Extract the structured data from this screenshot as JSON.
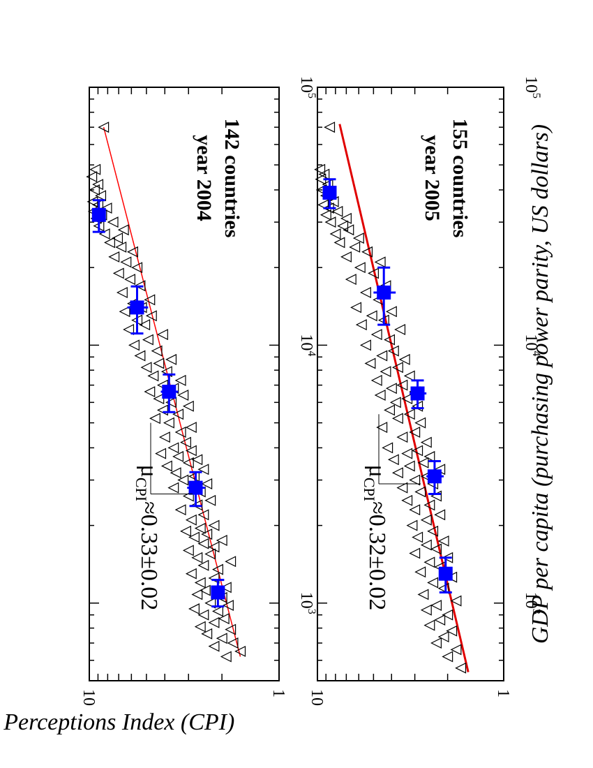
{
  "axes": {
    "x_title": "GDP per capita (purchasing power parity, US dollars)",
    "y_title": "Corruption Perceptions Index (CPI)",
    "x_scale": "log",
    "y_scale": "log",
    "x_ticks": [
      {
        "base": "10",
        "exp": "3",
        "value": 1000
      },
      {
        "base": "10",
        "exp": "4",
        "value": 10000
      },
      {
        "base": "10",
        "exp": "5",
        "value": 100000
      }
    ],
    "y_ticks": [
      {
        "label": "10",
        "value": 10
      },
      {
        "label": "1",
        "value": 1
      }
    ]
  },
  "chart_data": [
    {
      "type": "scatter",
      "annotation": {
        "year": "year 2004",
        "countries": "142 countries"
      },
      "exponent": {
        "symbol": "μ",
        "sub": "CPI",
        "text": "≈0.33±0.02"
      },
      "fit_color": "#ff0000",
      "binned_color": "#0000ff",
      "fit": {
        "x1": 620,
        "y1": 1.6,
        "x2": 70000,
        "y2": 8.4
      },
      "binned": [
        {
          "x": 1100,
          "y": 2.1,
          "xerr": 130,
          "yerr": 0.15
        },
        {
          "x": 2800,
          "y": 2.75,
          "xerr": 420,
          "yerr": 0.3
        },
        {
          "x": 6600,
          "y": 3.8,
          "xerr": 1100,
          "yerr": 0.4
        },
        {
          "x": 14000,
          "y": 5.6,
          "xerr": 2900,
          "yerr": 0.7
        },
        {
          "x": 32000,
          "y": 8.9,
          "xerr": 4500,
          "yerr": 0.6
        }
      ],
      "points": [
        [
          620,
          1.9
        ],
        [
          650,
          1.6
        ],
        [
          680,
          2.2
        ],
        [
          700,
          1.75
        ],
        [
          730,
          2.0
        ],
        [
          760,
          2.4
        ],
        [
          790,
          1.8
        ],
        [
          810,
          2.6
        ],
        [
          840,
          2.2
        ],
        [
          870,
          1.95
        ],
        [
          900,
          2.5
        ],
        [
          930,
          2.1
        ],
        [
          950,
          2.8
        ],
        [
          980,
          1.85
        ],
        [
          1000,
          2.3
        ],
        [
          1050,
          2.0
        ],
        [
          1080,
          2.7
        ],
        [
          1120,
          2.45
        ],
        [
          1150,
          1.9
        ],
        [
          1200,
          2.6
        ],
        [
          1250,
          2.2
        ],
        [
          1300,
          2.9
        ],
        [
          1350,
          2.1
        ],
        [
          1400,
          2.5
        ],
        [
          1450,
          1.8
        ],
        [
          1500,
          2.7
        ],
        [
          1550,
          2.3
        ],
        [
          1600,
          3.0
        ],
        [
          1650,
          2.2
        ],
        [
          1700,
          2.5
        ],
        [
          1750,
          2.0
        ],
        [
          1800,
          2.8
        ],
        [
          1850,
          2.4
        ],
        [
          1900,
          3.1
        ],
        [
          1950,
          2.6
        ],
        [
          2000,
          2.2
        ],
        [
          2100,
          2.9
        ],
        [
          2200,
          2.5
        ],
        [
          2300,
          3.3
        ],
        [
          2400,
          2.7
        ],
        [
          2500,
          2.3
        ],
        [
          2600,
          3.0
        ],
        [
          2700,
          2.6
        ],
        [
          2800,
          3.6
        ],
        [
          2900,
          2.4
        ],
        [
          3000,
          3.2
        ],
        [
          3100,
          2.8
        ],
        [
          3200,
          3.5
        ],
        [
          3300,
          2.5
        ],
        [
          3400,
          3.9
        ],
        [
          3500,
          3.0
        ],
        [
          3600,
          2.7
        ],
        [
          3700,
          3.4
        ],
        [
          3800,
          4.2
        ],
        [
          3900,
          2.9
        ],
        [
          4000,
          3.6
        ],
        [
          4200,
          3.1
        ],
        [
          4400,
          4.0
        ],
        [
          4600,
          3.3
        ],
        [
          4800,
          2.9
        ],
        [
          5000,
          3.8
        ],
        [
          5200,
          4.5
        ],
        [
          5400,
          3.4
        ],
        [
          5600,
          4.1
        ],
        [
          5800,
          3.0
        ],
        [
          6000,
          3.7
        ],
        [
          6200,
          4.3
        ],
        [
          6400,
          3.2
        ],
        [
          6600,
          4.8
        ],
        [
          6800,
          3.6
        ],
        [
          7000,
          4.1
        ],
        [
          7300,
          3.3
        ],
        [
          7600,
          4.6
        ],
        [
          7900,
          3.9
        ],
        [
          8200,
          5.0
        ],
        [
          8500,
          4.3
        ],
        [
          8800,
          3.7
        ],
        [
          9100,
          5.4
        ],
        [
          9500,
          4.4
        ],
        [
          10000,
          5.8
        ],
        [
          10500,
          4.9
        ],
        [
          11000,
          4.1
        ],
        [
          11500,
          6.2
        ],
        [
          12000,
          5.1
        ],
        [
          12500,
          5.6
        ],
        [
          13000,
          4.7
        ],
        [
          13500,
          6.5
        ],
        [
          14000,
          5.3
        ],
        [
          14500,
          5.9
        ],
        [
          15000,
          4.8
        ],
        [
          16000,
          6.7
        ],
        [
          17000,
          5.4
        ],
        [
          18000,
          6.1
        ],
        [
          19000,
          7.0
        ],
        [
          20000,
          5.6
        ],
        [
          21000,
          6.4
        ],
        [
          22000,
          7.4
        ],
        [
          23000,
          5.9
        ],
        [
          24000,
          6.8
        ],
        [
          25000,
          7.8
        ],
        [
          26000,
          7.1
        ],
        [
          27000,
          8.3
        ],
        [
          28000,
          6.6
        ],
        [
          29000,
          8.9
        ],
        [
          30000,
          7.5
        ],
        [
          31000,
          9.2
        ],
        [
          32000,
          8.6
        ],
        [
          33000,
          9.5
        ],
        [
          34000,
          8.1
        ],
        [
          35000,
          9.0
        ],
        [
          36000,
          9.6
        ],
        [
          38000,
          8.7
        ],
        [
          40000,
          9.4
        ],
        [
          42000,
          9.0
        ],
        [
          45000,
          9.7
        ],
        [
          48000,
          9.3
        ],
        [
          70000,
          8.4
        ]
      ]
    },
    {
      "type": "scatter",
      "annotation": {
        "year": "year 2005",
        "countries": "155 countries"
      },
      "exponent": {
        "symbol": "μ",
        "sub": "CPI",
        "text": "≈0.32±0.02"
      },
      "fit_color": "#e00000",
      "binned_color": "#0000ff",
      "fit": {
        "x1": 540,
        "y1": 1.55,
        "x2": 72000,
        "y2": 7.6
      },
      "binned": [
        {
          "x": 1300,
          "y": 2.05,
          "xerr": 200,
          "yerr": 0.15
        },
        {
          "x": 3100,
          "y": 2.35,
          "xerr": 450,
          "yerr": 0.25
        },
        {
          "x": 6500,
          "y": 2.9,
          "xerr": 800,
          "yerr": 0.3
        },
        {
          "x": 16000,
          "y": 4.4,
          "xerr": 4000,
          "yerr": 0.6
        },
        {
          "x": 39000,
          "y": 8.6,
          "xerr": 5000,
          "yerr": 0.7
        }
      ],
      "points": [
        [
          560,
          1.7
        ],
        [
          620,
          2.0
        ],
        [
          660,
          1.8
        ],
        [
          700,
          2.3
        ],
        [
          740,
          2.1
        ],
        [
          780,
          1.9
        ],
        [
          820,
          2.5
        ],
        [
          860,
          2.2
        ],
        [
          900,
          2.0
        ],
        [
          940,
          2.6
        ],
        [
          980,
          2.3
        ],
        [
          1020,
          1.8
        ],
        [
          1080,
          2.7
        ],
        [
          1140,
          2.1
        ],
        [
          1200,
          2.4
        ],
        [
          1260,
          1.9
        ],
        [
          1320,
          2.8
        ],
        [
          1380,
          2.2
        ],
        [
          1440,
          2.5
        ],
        [
          1500,
          2.0
        ],
        [
          1560,
          3.0
        ],
        [
          1620,
          2.3
        ],
        [
          1680,
          2.6
        ],
        [
          1740,
          2.1
        ],
        [
          1800,
          2.9
        ],
        [
          1900,
          2.4
        ],
        [
          2000,
          3.1
        ],
        [
          2100,
          2.6
        ],
        [
          2200,
          2.2
        ],
        [
          2300,
          3.0
        ],
        [
          2400,
          2.5
        ],
        [
          2500,
          3.3
        ],
        [
          2600,
          2.3
        ],
        [
          2700,
          2.8
        ],
        [
          2800,
          3.5
        ],
        [
          2900,
          2.4
        ],
        [
          3000,
          3.0
        ],
        [
          3100,
          2.6
        ],
        [
          3200,
          3.7
        ],
        [
          3300,
          2.2
        ],
        [
          3400,
          3.2
        ],
        [
          3500,
          2.7
        ],
        [
          3600,
          3.9
        ],
        [
          3700,
          2.5
        ],
        [
          3800,
          3.3
        ],
        [
          3900,
          2.9
        ],
        [
          4000,
          4.2
        ],
        [
          4200,
          2.6
        ],
        [
          4400,
          3.5
        ],
        [
          4600,
          3.0
        ],
        [
          4800,
          4.5
        ],
        [
          5000,
          2.8
        ],
        [
          5200,
          3.7
        ],
        [
          5400,
          3.2
        ],
        [
          5600,
          4.1
        ],
        [
          5800,
          2.9
        ],
        [
          6000,
          3.8
        ],
        [
          6200,
          3.3
        ],
        [
          6400,
          4.6
        ],
        [
          6600,
          3.0
        ],
        [
          6800,
          4.0
        ],
        [
          7000,
          3.5
        ],
        [
          7300,
          4.8
        ],
        [
          7600,
          3.2
        ],
        [
          7900,
          4.3
        ],
        [
          8200,
          3.7
        ],
        [
          8500,
          5.2
        ],
        [
          8800,
          3.4
        ],
        [
          9100,
          4.5
        ],
        [
          9500,
          3.9
        ],
        [
          10000,
          5.5
        ],
        [
          10500,
          4.1
        ],
        [
          11000,
          4.8
        ],
        [
          11500,
          3.6
        ],
        [
          12000,
          5.8
        ],
        [
          12500,
          4.4
        ],
        [
          13000,
          5.1
        ],
        [
          13500,
          4.0
        ],
        [
          14000,
          6.2
        ],
        [
          15000,
          4.7
        ],
        [
          16000,
          5.5
        ],
        [
          17000,
          4.3
        ],
        [
          18000,
          6.6
        ],
        [
          19000,
          5.0
        ],
        [
          20000,
          5.9
        ],
        [
          21000,
          4.6
        ],
        [
          22000,
          7.0
        ],
        [
          23000,
          5.4
        ],
        [
          24000,
          6.3
        ],
        [
          25000,
          7.6
        ],
        [
          26000,
          6.0
        ],
        [
          27000,
          8.0
        ],
        [
          28000,
          6.8
        ],
        [
          29000,
          7.3
        ],
        [
          30000,
          8.5
        ],
        [
          31000,
          7.0
        ],
        [
          32000,
          9.0
        ],
        [
          33000,
          7.8
        ],
        [
          34000,
          8.7
        ],
        [
          35000,
          9.3
        ],
        [
          36000,
          8.2
        ],
        [
          38000,
          9.0
        ],
        [
          40000,
          9.5
        ],
        [
          42000,
          8.8
        ],
        [
          44000,
          9.6
        ],
        [
          46000,
          9.2
        ],
        [
          48000,
          9.7
        ],
        [
          70000,
          8.6
        ]
      ]
    }
  ]
}
